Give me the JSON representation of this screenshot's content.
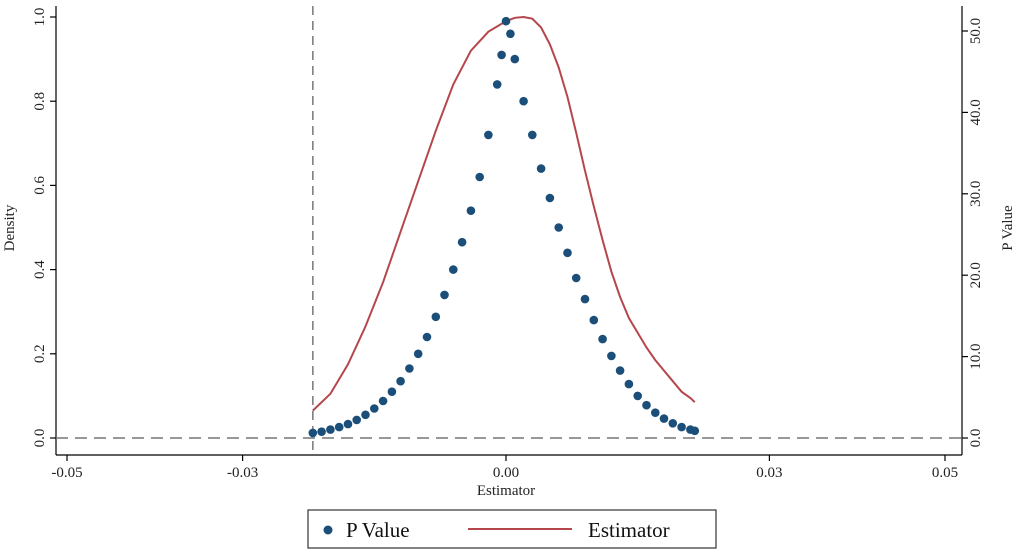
{
  "chart_data": {
    "type": "scatter",
    "title": "",
    "xlabel": "Estimator",
    "ylabel": "Density",
    "y2label": "P Value",
    "xlim": [
      -0.05,
      0.05
    ],
    "ylim": [
      0.0,
      1.0
    ],
    "y2lim": [
      0.0,
      52.0
    ],
    "x_ticks": [
      -0.05,
      -0.03,
      0.0,
      0.03,
      0.05
    ],
    "x_tick_labels": [
      "-0.05",
      "-0.03",
      "0.00",
      "0.03",
      "0.05"
    ],
    "y_ticks": [
      0.0,
      0.2,
      0.4,
      0.6,
      0.8,
      1.0
    ],
    "y_tick_labels": [
      "0.0",
      "0.2",
      "0.4",
      "0.6",
      "0.8",
      "1.0"
    ],
    "y2_ticks": [
      0.0,
      10.0,
      20.0,
      30.0,
      40.0,
      50.0
    ],
    "y2_tick_labels": [
      "0.0",
      "10.0",
      "20.0",
      "30.0",
      "40.0",
      "50.0"
    ],
    "reference_lines": {
      "vertical_x": -0.022,
      "horizontal_y": 0.0,
      "style": "dashed"
    },
    "grid": false,
    "legend_position": "bottom",
    "colors": {
      "p_value": "#1b4f7a",
      "estimator": "#b5474c",
      "reference": "#777777"
    },
    "series": [
      {
        "name": "P Value",
        "kind": "scatter",
        "axis": "left",
        "points": [
          [
            -0.022,
            0.012
          ],
          [
            -0.021,
            0.015
          ],
          [
            -0.02,
            0.02
          ],
          [
            -0.019,
            0.026
          ],
          [
            -0.018,
            0.033
          ],
          [
            -0.017,
            0.043
          ],
          [
            -0.016,
            0.055
          ],
          [
            -0.015,
            0.07
          ],
          [
            -0.014,
            0.088
          ],
          [
            -0.013,
            0.11
          ],
          [
            -0.012,
            0.135
          ],
          [
            -0.011,
            0.165
          ],
          [
            -0.01,
            0.2
          ],
          [
            -0.009,
            0.24
          ],
          [
            -0.008,
            0.288
          ],
          [
            -0.007,
            0.34
          ],
          [
            -0.006,
            0.4
          ],
          [
            -0.005,
            0.465
          ],
          [
            -0.004,
            0.54
          ],
          [
            -0.003,
            0.62
          ],
          [
            -0.002,
            0.72
          ],
          [
            -0.001,
            0.84
          ],
          [
            -0.0005,
            0.91
          ],
          [
            0.0,
            0.99
          ],
          [
            0.0005,
            0.96
          ],
          [
            0.001,
            0.9
          ],
          [
            0.002,
            0.8
          ],
          [
            0.003,
            0.72
          ],
          [
            0.004,
            0.64
          ],
          [
            0.005,
            0.57
          ],
          [
            0.006,
            0.5
          ],
          [
            0.007,
            0.44
          ],
          [
            0.008,
            0.38
          ],
          [
            0.009,
            0.33
          ],
          [
            0.01,
            0.28
          ],
          [
            0.011,
            0.235
          ],
          [
            0.012,
            0.195
          ],
          [
            0.013,
            0.16
          ],
          [
            0.014,
            0.128
          ],
          [
            0.015,
            0.1
          ],
          [
            0.016,
            0.078
          ],
          [
            0.017,
            0.06
          ],
          [
            0.018,
            0.046
          ],
          [
            0.019,
            0.035
          ],
          [
            0.02,
            0.026
          ],
          [
            0.021,
            0.02
          ],
          [
            0.0215,
            0.017
          ]
        ]
      },
      {
        "name": "Estimator",
        "kind": "line",
        "axis": "left",
        "points": [
          [
            -0.022,
            0.065
          ],
          [
            -0.02,
            0.105
          ],
          [
            -0.018,
            0.175
          ],
          [
            -0.016,
            0.265
          ],
          [
            -0.014,
            0.37
          ],
          [
            -0.012,
            0.49
          ],
          [
            -0.01,
            0.61
          ],
          [
            -0.008,
            0.73
          ],
          [
            -0.006,
            0.84
          ],
          [
            -0.004,
            0.92
          ],
          [
            -0.002,
            0.965
          ],
          [
            0.0,
            0.99
          ],
          [
            0.001,
            0.998
          ],
          [
            0.002,
            1.0
          ],
          [
            0.003,
            0.996
          ],
          [
            0.004,
            0.975
          ],
          [
            0.005,
            0.935
          ],
          [
            0.006,
            0.88
          ],
          [
            0.007,
            0.81
          ],
          [
            0.008,
            0.725
          ],
          [
            0.009,
            0.635
          ],
          [
            0.01,
            0.55
          ],
          [
            0.011,
            0.47
          ],
          [
            0.012,
            0.395
          ],
          [
            0.013,
            0.335
          ],
          [
            0.014,
            0.285
          ],
          [
            0.015,
            0.25
          ],
          [
            0.016,
            0.215
          ],
          [
            0.017,
            0.185
          ],
          [
            0.018,
            0.16
          ],
          [
            0.019,
            0.135
          ],
          [
            0.02,
            0.11
          ],
          [
            0.021,
            0.095
          ],
          [
            0.0215,
            0.085
          ]
        ]
      }
    ]
  }
}
